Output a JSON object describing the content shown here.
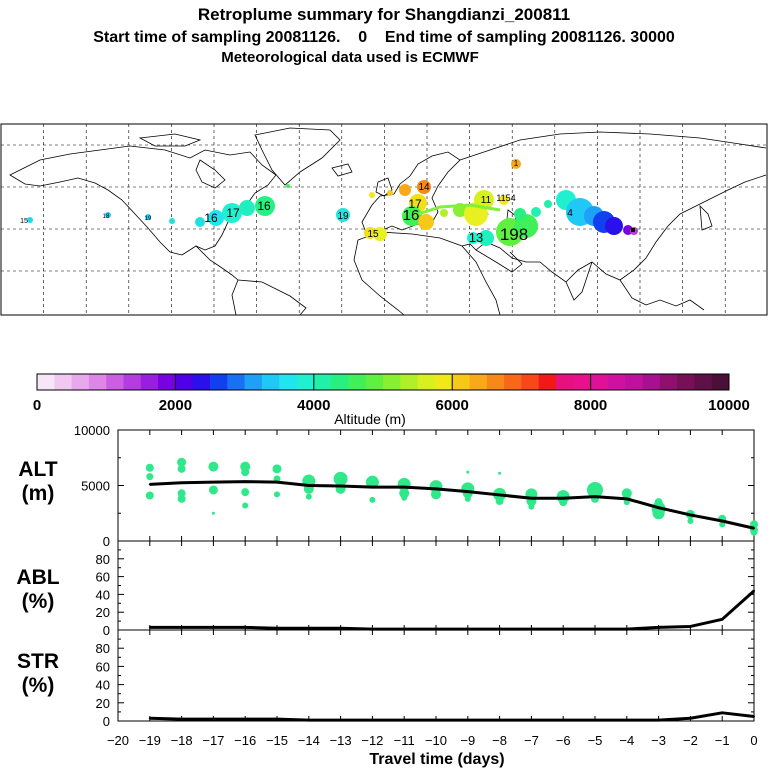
{
  "header": {
    "title": "Retroplume summary for Shangdianzi_200811",
    "subtitle": "Start time of sampling 20081126.    0    End time of sampling 20081126. 30000",
    "met_line": "Meteorological data used is ECMWF"
  },
  "colorbar": {
    "label": "Altitude (m)",
    "ticks": [
      "0",
      "2000",
      "4000",
      "6000",
      "8000",
      "10000"
    ],
    "range": [
      0,
      10000
    ],
    "colors": [
      "#f7e6f7",
      "#f0c8f0",
      "#e8a8ec",
      "#dd86e8",
      "#cc5ee4",
      "#b43ce0",
      "#9a1ee0",
      "#7a00e4",
      "#5000e6",
      "#2a10ea",
      "#1040f0",
      "#1870f4",
      "#1ea0f6",
      "#20c8f6",
      "#20e4f0",
      "#20f0d0",
      "#20f0a8",
      "#28f080",
      "#40f058",
      "#60f040",
      "#88f030",
      "#b0f028",
      "#d8f020",
      "#f0e818",
      "#f8c818",
      "#f8a818",
      "#f88818",
      "#f86818",
      "#f84818",
      "#f01818",
      "#e81080",
      "#e8108c",
      "#e01098",
      "#d010a0",
      "#c010a0",
      "#a81090",
      "#901070",
      "#781058",
      "#601048",
      "#4a1038"
    ]
  },
  "map": {
    "labels": [
      {
        "t": "15",
        "c": "#20d8f0"
      },
      {
        "t": "18",
        "c": "#20d0f0"
      },
      {
        "t": "19",
        "c": "#20e0e0"
      },
      {
        "t": "16",
        "c": "#20e8c8"
      },
      {
        "t": "17",
        "c": "#20f0b0"
      },
      {
        "t": "16",
        "c": "#20e0e0"
      },
      {
        "t": "19",
        "c": "#f0e018"
      },
      {
        "t": "15",
        "c": "#40f058"
      },
      {
        "t": "16",
        "c": "#b8f028"
      },
      {
        "t": "17",
        "c": "#f8a818"
      },
      {
        "t": "14",
        "c": "#e8f020"
      },
      {
        "t": "11",
        "c": "#f0e818"
      },
      {
        "t": "1154",
        "c": "#80f038"
      },
      {
        "t": "198",
        "c": "#20f0d0"
      },
      {
        "t": "13",
        "c": "#f88818"
      },
      {
        "t": "1",
        "c": "#20a0f6"
      },
      {
        "t": "4",
        "c": "#2040f0"
      }
    ]
  },
  "chart_data": [
    {
      "type": "line",
      "panel": "ALT",
      "ylabel": "ALT (m)",
      "ylim": [
        0,
        10000
      ],
      "yticks": [
        "10000",
        "5000",
        "0"
      ],
      "x": [
        -19,
        -18,
        -17,
        -16,
        -15,
        -14,
        -13,
        -12,
        -11,
        -10,
        -9,
        -8,
        -7,
        -6,
        -5,
        -4,
        -3,
        -2,
        -1,
        0
      ],
      "series": [
        {
          "name": "mean altitude",
          "values": [
            5100,
            5250,
            5300,
            5350,
            5300,
            5000,
            4950,
            4850,
            4850,
            4700,
            4450,
            4150,
            3850,
            3850,
            4000,
            3800,
            3000,
            2350,
            1800,
            1150
          ]
        }
      ],
      "clusters": [
        {
          "x": -19,
          "y": [
            6600,
            5800,
            4100
          ],
          "size": [
            4,
            3.5,
            4
          ]
        },
        {
          "x": -18,
          "y": [
            7100,
            6500,
            4300,
            3800
          ],
          "size": [
            4.5,
            4,
            4,
            4
          ]
        },
        {
          "x": -17,
          "y": [
            6700,
            4600,
            2500
          ],
          "size": [
            5,
            4.5,
            1.5
          ]
        },
        {
          "x": -16,
          "y": [
            6700,
            6200,
            4400,
            3200
          ],
          "size": [
            5,
            4,
            4,
            3
          ]
        },
        {
          "x": -15,
          "y": [
            6500,
            5600,
            4200
          ],
          "size": [
            4.5,
            3.5,
            3
          ]
        },
        {
          "x": -14,
          "y": [
            5400,
            4700,
            4000
          ],
          "size": [
            6.5,
            5,
            3
          ]
        },
        {
          "x": -13,
          "y": [
            5600,
            4700
          ],
          "size": [
            7,
            5
          ]
        },
        {
          "x": -12,
          "y": [
            5300,
            3700
          ],
          "size": [
            6.5,
            3
          ]
        },
        {
          "x": -11,
          "y": [
            5100,
            4300,
            3900
          ],
          "size": [
            6.5,
            5,
            3
          ]
        },
        {
          "x": -10,
          "y": [
            4900,
            4200
          ],
          "size": [
            6.5,
            5
          ]
        },
        {
          "x": -9,
          "y": [
            4700,
            4300,
            3800,
            6200
          ],
          "size": [
            6.5,
            5,
            3,
            1.5
          ]
        },
        {
          "x": -8,
          "y": [
            4200,
            3600,
            6100
          ],
          "size": [
            6.5,
            4,
            1.5
          ]
        },
        {
          "x": -7,
          "y": [
            4200,
            3600,
            3100
          ],
          "size": [
            6,
            5,
            3
          ]
        },
        {
          "x": -6,
          "y": [
            4000,
            3500
          ],
          "size": [
            6.5,
            4
          ]
        },
        {
          "x": -5,
          "y": [
            4600,
            3800
          ],
          "size": [
            8,
            4
          ]
        },
        {
          "x": -4,
          "y": [
            4300,
            3900,
            3500
          ],
          "size": [
            5,
            4,
            3
          ]
        },
        {
          "x": -3,
          "y": [
            3500,
            2900,
            2500
          ],
          "size": [
            4,
            7,
            6
          ]
        },
        {
          "x": -2,
          "y": [
            2400,
            1800
          ],
          "size": [
            4.5,
            3
          ]
        },
        {
          "x": -1,
          "y": [
            2000,
            1500
          ],
          "size": [
            4,
            3
          ]
        },
        {
          "x": 0,
          "y": [
            1500,
            1000,
            800
          ],
          "size": [
            4,
            4,
            3.5
          ]
        }
      ]
    },
    {
      "type": "line",
      "panel": "ABL",
      "ylabel": "ABL (%)",
      "ylim": [
        0,
        100
      ],
      "yticks": [
        "80",
        "60",
        "40",
        "20",
        "0"
      ],
      "x": [
        -19,
        -18,
        -17,
        -16,
        -15,
        -14,
        -13,
        -12,
        -11,
        -10,
        -9,
        -8,
        -7,
        -6,
        -5,
        -4,
        -3,
        -2,
        -1,
        0
      ],
      "series": [
        {
          "name": "ABL fraction",
          "values": [
            3,
            3,
            3,
            3,
            2,
            2,
            2,
            1,
            1,
            1,
            1,
            1,
            1,
            1,
            1,
            1,
            3,
            4,
            12,
            44
          ]
        }
      ]
    },
    {
      "type": "line",
      "panel": "STR",
      "ylabel": "STR (%)",
      "ylim": [
        0,
        100
      ],
      "yticks": [
        "80",
        "60",
        "40",
        "20",
        "0"
      ],
      "x": [
        -19,
        -18,
        -17,
        -16,
        -15,
        -14,
        -13,
        -12,
        -11,
        -10,
        -9,
        -8,
        -7,
        -6,
        -5,
        -4,
        -3,
        -2,
        -1,
        0
      ],
      "series": [
        {
          "name": "stratospheric fraction",
          "values": [
            3,
            2,
            2,
            2,
            2,
            1,
            1,
            1,
            1,
            1,
            1,
            1,
            1,
            1,
            1,
            1,
            1,
            3,
            9,
            5
          ]
        }
      ]
    }
  ],
  "xaxis": {
    "label": "Travel time (days)",
    "ticks": [
      "−20",
      "−19",
      "−18",
      "−17",
      "−16",
      "−15",
      "−14",
      "−13",
      "−12",
      "−11",
      "−10",
      "−9",
      "−8",
      "−7",
      "−6",
      "−5",
      "−4",
      "−3",
      "−2",
      "−1",
      "0"
    ]
  },
  "panel_labels": {
    "alt": {
      "l1": "ALT",
      "l2": "(m)"
    },
    "abl": {
      "l1": "ABL",
      "l2": "(%)"
    },
    "str": {
      "l1": "STR",
      "l2": "(%)"
    }
  },
  "colors": {
    "dots": "#2ee88a",
    "line": "#000000"
  }
}
